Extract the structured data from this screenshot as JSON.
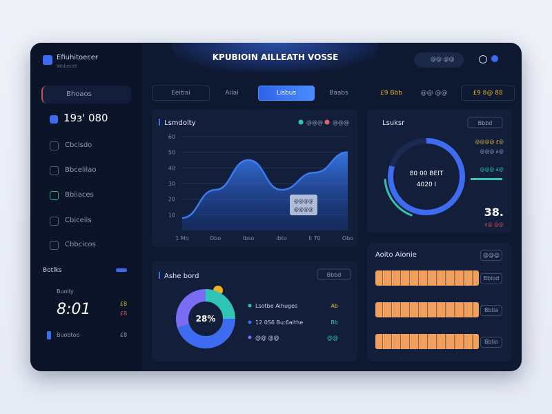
{
  "header": {
    "brand": "Efiuhitoecer",
    "brand_sub": "Wsiiecet",
    "title": "KPUBIOIN AILLEATH VOSSE",
    "user": "@@ @@"
  },
  "tabs": [
    "Eeitiai",
    "Aiiai",
    "Lisbus",
    "Baabs",
    "£9 Bbb",
    "@@ @@",
    "£9 8@ 88"
  ],
  "sidebar": {
    "items": [
      "Bhoaos",
      "19ɜ' 080",
      "Cbcisdo",
      "Bbcelilao",
      "Bbiiaces",
      "Cbiceiis",
      "Cbbcicos"
    ],
    "section": "Botlks",
    "stat_label": "Buolly",
    "stat_value": "8:01",
    "stat_side": [
      "£8",
      "£8"
    ],
    "footer": "Buobtoo",
    "footer_side": "£8"
  },
  "line_chart": {
    "type": "area",
    "title": "Lsmdolty",
    "legend": [
      "@@@",
      "@@@"
    ],
    "categories": [
      "1 Mo",
      "Obo",
      "Ibso",
      "Ibto",
      "Ii 70",
      "Obo"
    ],
    "values": [
      8,
      26,
      45,
      26,
      37,
      50
    ],
    "ylim": [
      0,
      60
    ],
    "yticks": [
      10,
      20,
      30,
      40,
      50,
      60
    ],
    "color": "#3a7bf0",
    "tooltip": [
      "@@@@",
      "@@@@"
    ]
  },
  "donut": {
    "type": "pie",
    "title": "Ashe bord",
    "button": "Bbbd",
    "center_label": "28%",
    "values": [
      25,
      45,
      30
    ],
    "colors": [
      "#2fc6b8",
      "#3d6cf0",
      "#7a6cf5"
    ],
    "legend": [
      {
        "label": "Lsotbe Aihuges",
        "value": "Ab"
      },
      {
        "label": "12 0S6 Bu:6aithe",
        "value": "Bb"
      },
      {
        "label": "@@ @@",
        "value": "@@"
      }
    ]
  },
  "gauge": {
    "title": "Lsuksr",
    "button": "Bbbd",
    "center": [
      "80 00 BEIT",
      "4020 I"
    ],
    "side": [
      "@@@@ £@",
      "@@@ £@",
      "@@@ £@"
    ],
    "big": "38.",
    "small": "£@ @@"
  },
  "list": {
    "title": "Aoito Aionie",
    "button": "@@@",
    "rows": [
      "Bblod",
      "Bblia",
      "Bblio"
    ]
  }
}
